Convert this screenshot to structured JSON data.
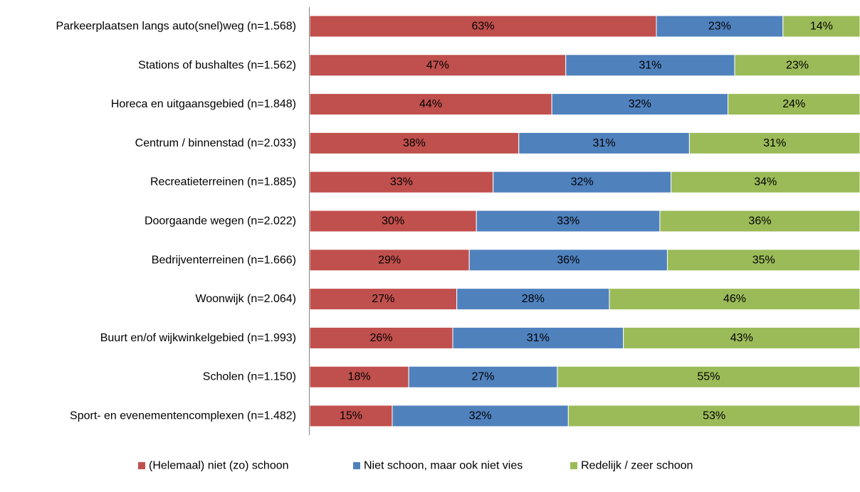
{
  "chart_data": {
    "type": "bar",
    "orientation": "horizontal",
    "stacked": "percent",
    "categories": [
      "Parkeerplaatsen langs auto(snel)weg (n=1.568)",
      "Stations of bushaltes (n=1.562)",
      "Horeca en uitgaansgebied (n=1.848)",
      "Centrum / binnenstad (n=2.033)",
      "Recreatieterreinen (n=1.885)",
      "Doorgaande wegen (n=2.022)",
      "Bedrijventerreinen (n=1.666)",
      "Woonwijk (n=2.064)",
      "Buurt en/of wijkwinkelgebied (n=1.993)",
      "Scholen (n=1.150)",
      "Sport- en evenementencomplexen (n=1.482)"
    ],
    "series": [
      {
        "name": "(Helemaal) niet (zo) schoon",
        "color": "#c0504d",
        "values": [
          63,
          47,
          44,
          38,
          33,
          30,
          29,
          27,
          26,
          18,
          15
        ],
        "labels": [
          "63%",
          "47%",
          "44%",
          "38%",
          "33%",
          "30%",
          "29%",
          "27%",
          "26%",
          "18%",
          "15%"
        ]
      },
      {
        "name": "Niet schoon, maar ook niet vies",
        "color": "#4f81bd",
        "values": [
          23,
          31,
          32,
          31,
          32,
          33,
          36,
          28,
          31,
          27,
          32
        ],
        "labels": [
          "23%",
          "31%",
          "32%",
          "31%",
          "32%",
          "33%",
          "36%",
          "28%",
          "31%",
          "27%",
          "32%"
        ]
      },
      {
        "name": "Redelijk / zeer schoon",
        "color": "#9bbb59",
        "values": [
          14,
          23,
          24,
          31,
          34,
          36,
          35,
          46,
          43,
          55,
          53
        ],
        "labels": [
          "14%",
          "23%",
          "24%",
          "31%",
          "34%",
          "36%",
          "35%",
          "46%",
          "43%",
          "55%",
          "53%"
        ]
      }
    ],
    "xlim": [
      0,
      100
    ],
    "grid": false,
    "legend_position": "bottom",
    "axis_color": "#868686"
  }
}
